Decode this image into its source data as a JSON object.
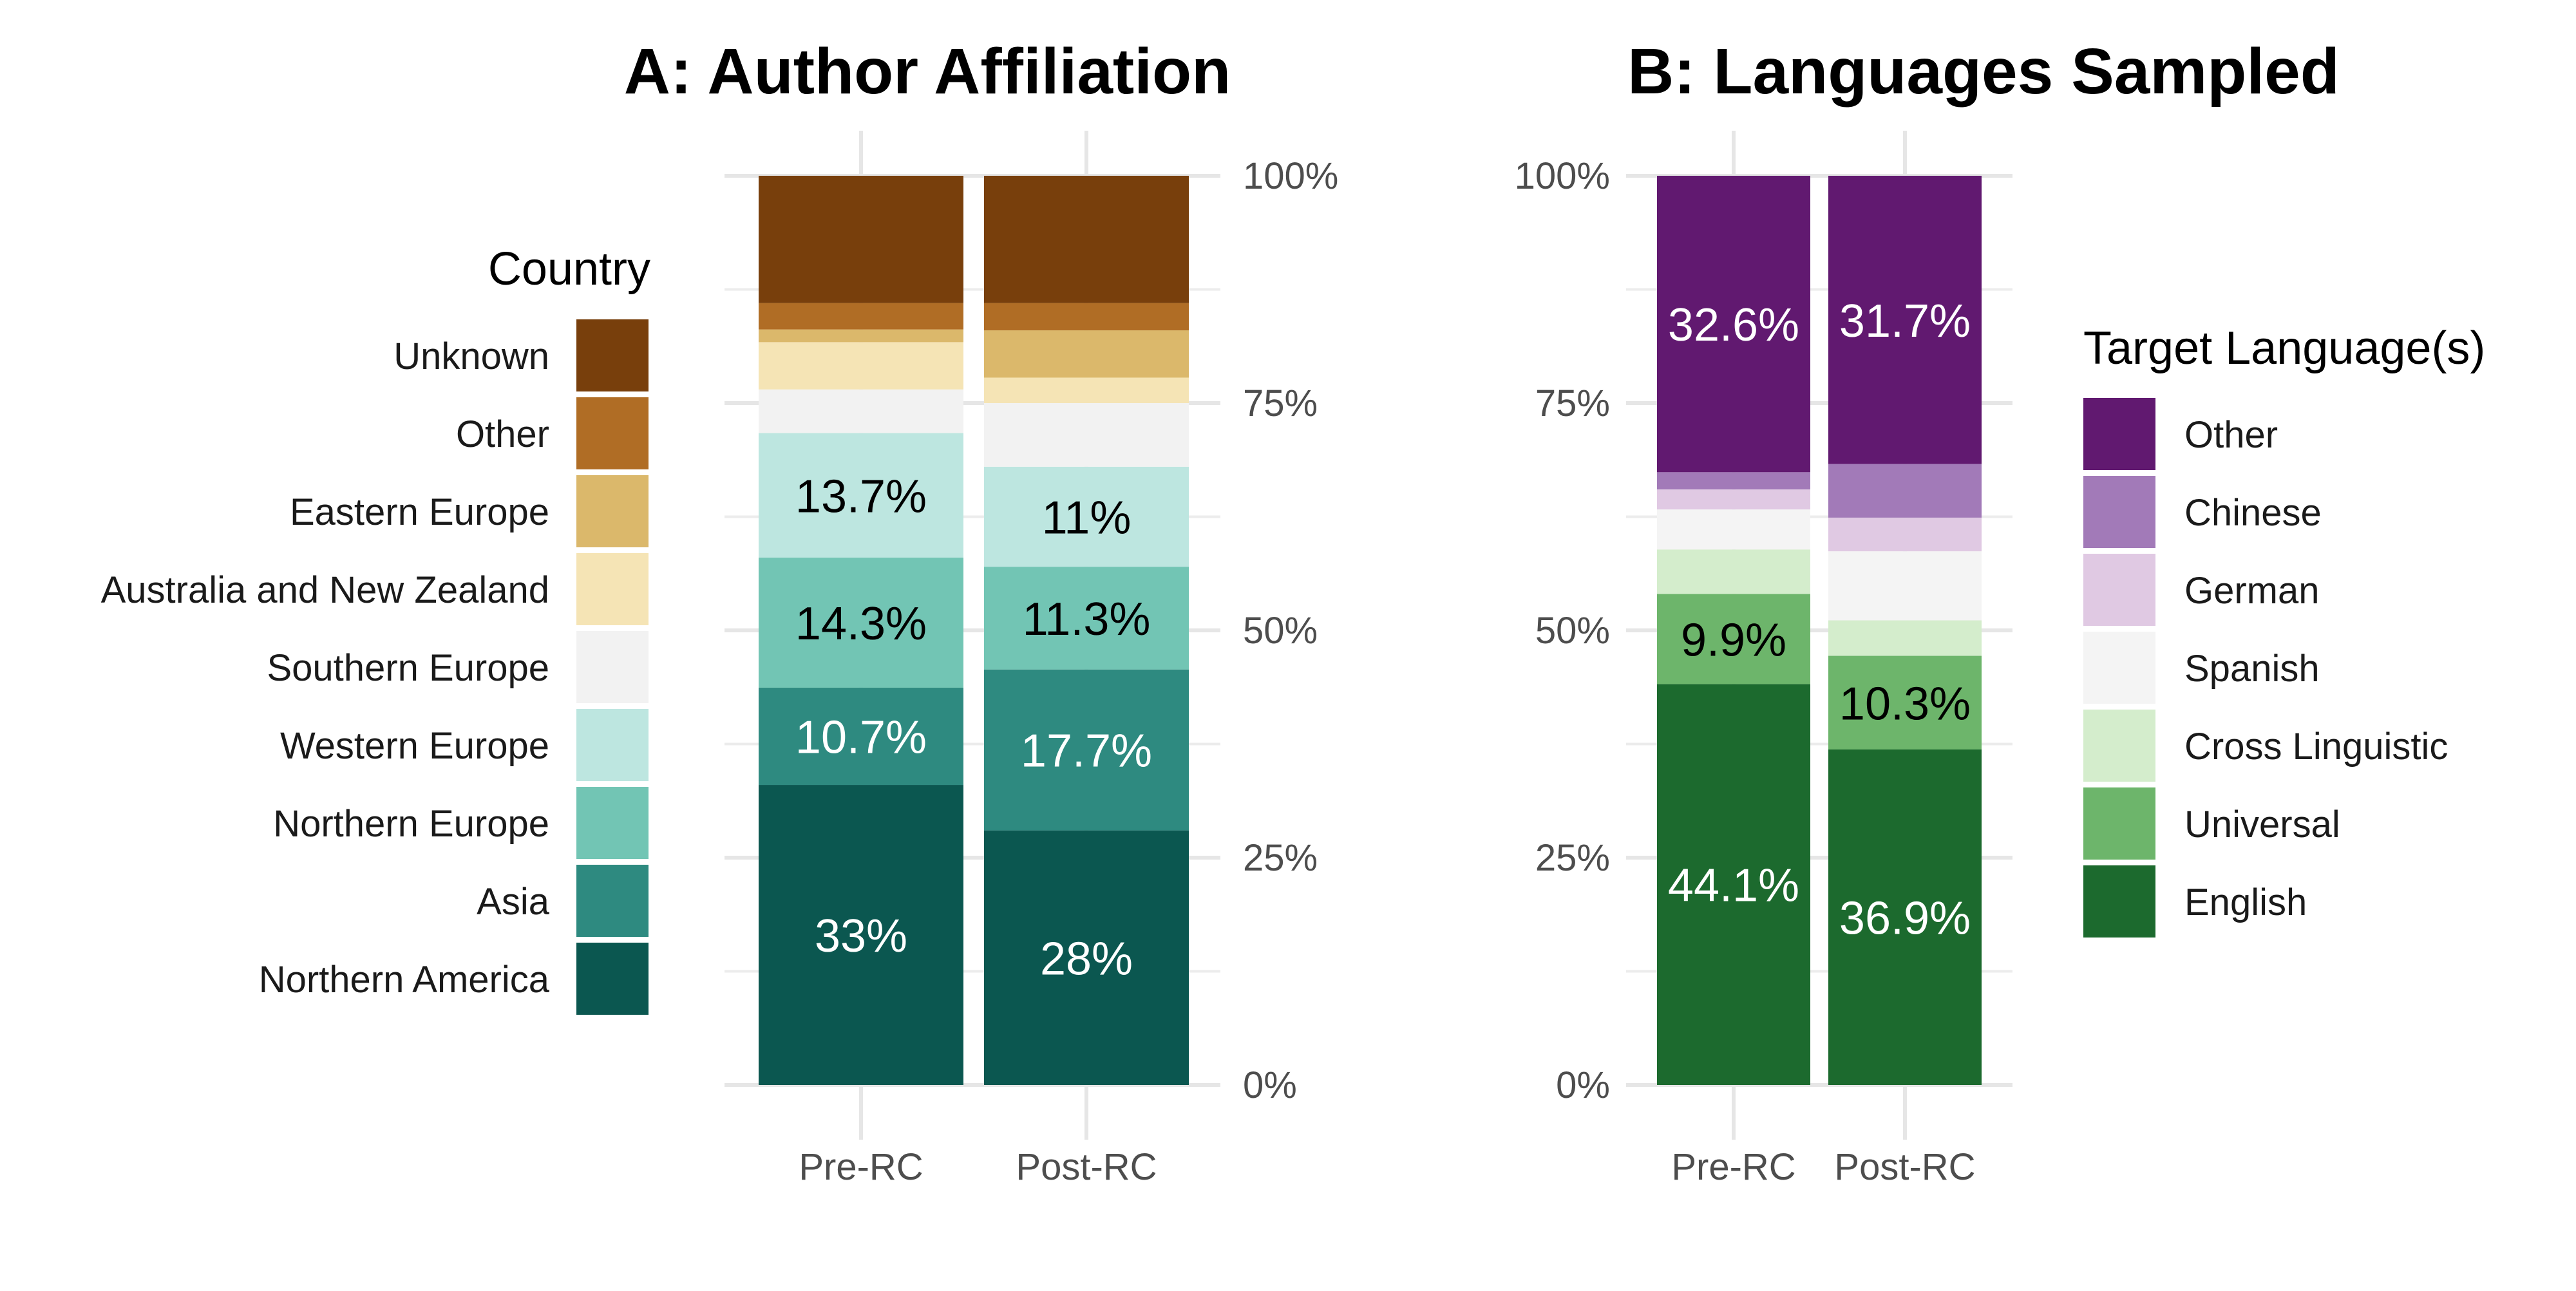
{
  "chart_data": [
    {
      "type": "bar",
      "stacked": true,
      "title": "A: Author Affiliation",
      "categories": [
        "Pre-RC",
        "Post-RC"
      ],
      "ylim": [
        0,
        100
      ],
      "y_ticks": [
        "0%",
        "25%",
        "50%",
        "75%",
        "100%"
      ],
      "y_axis_side": "right",
      "grid": true,
      "legend": {
        "title": "Country",
        "placement": "left"
      },
      "series": [
        {
          "name": "Northern America",
          "color": "#0b5750",
          "values": [
            33.0,
            28.0
          ],
          "labels": [
            "33%",
            "28%"
          ],
          "label_color": "#ffffff"
        },
        {
          "name": "Asia",
          "color": "#2e8a80",
          "values": [
            10.7,
            17.7
          ],
          "labels": [
            "10.7%",
            "17.7%"
          ],
          "label_color": "#ffffff"
        },
        {
          "name": "Northern Europe",
          "color": "#72c5b4",
          "values": [
            14.3,
            11.3
          ],
          "labels": [
            "14.3%",
            "11.3%"
          ],
          "label_color": "#000000"
        },
        {
          "name": "Western Europe",
          "color": "#bde6e0",
          "values": [
            13.7,
            11.0
          ],
          "labels": [
            "13.7%",
            "11%"
          ],
          "label_color": "#000000"
        },
        {
          "name": "Southern Europe",
          "color": "#f2f2f2",
          "values": [
            4.8,
            7.0
          ],
          "labels": [
            "",
            ""
          ],
          "label_color": "#000000"
        },
        {
          "name": "Australia and New Zealand",
          "color": "#f5e4b5",
          "values": [
            5.2,
            2.8
          ],
          "labels": [
            "",
            ""
          ],
          "label_color": "#000000"
        },
        {
          "name": "Eastern Europe",
          "color": "#dbb86b",
          "values": [
            1.4,
            5.2
          ],
          "labels": [
            "",
            ""
          ],
          "label_color": "#000000"
        },
        {
          "name": "Other",
          "color": "#b06d25",
          "values": [
            2.9,
            3.0
          ],
          "labels": [
            "",
            ""
          ],
          "label_color": "#000000"
        },
        {
          "name": "Unknown",
          "color": "#783f0c",
          "values": [
            14.0,
            14.0
          ],
          "labels": [
            "",
            ""
          ],
          "label_color": "#ffffff"
        }
      ]
    },
    {
      "type": "bar",
      "stacked": true,
      "title": "B: Languages Sampled",
      "categories": [
        "Pre-RC",
        "Post-RC"
      ],
      "ylim": [
        0,
        100
      ],
      "y_ticks": [
        "0%",
        "25%",
        "50%",
        "75%",
        "100%"
      ],
      "y_axis_side": "left",
      "grid": true,
      "legend": {
        "title": "Target Language(s)",
        "placement": "right"
      },
      "series": [
        {
          "name": "English",
          "color": "#1c6a2e",
          "values": [
            44.1,
            36.9
          ],
          "labels": [
            "44.1%",
            "36.9%"
          ],
          "label_color": "#ffffff"
        },
        {
          "name": "Universal",
          "color": "#6db56b",
          "values": [
            9.9,
            10.3
          ],
          "labels": [
            "9.9%",
            "10.3%"
          ],
          "label_color": "#000000"
        },
        {
          "name": "Cross Linguistic",
          "color": "#d4edcc",
          "values": [
            4.9,
            3.9
          ],
          "labels": [
            "",
            ""
          ],
          "label_color": "#000000"
        },
        {
          "name": "Spanish",
          "color": "#f4f4f4",
          "values": [
            4.4,
            7.6
          ],
          "labels": [
            "",
            ""
          ],
          "label_color": "#000000"
        },
        {
          "name": "German",
          "color": "#e0c9e3",
          "values": [
            2.2,
            3.7
          ],
          "labels": [
            "",
            ""
          ],
          "label_color": "#000000"
        },
        {
          "name": "Chinese",
          "color": "#a27ab8",
          "values": [
            1.9,
            5.9
          ],
          "labels": [
            "",
            ""
          ],
          "label_color": "#000000"
        },
        {
          "name": "Other",
          "color": "#611970",
          "values": [
            32.6,
            31.7
          ],
          "labels": [
            "32.6%",
            "31.7%"
          ],
          "label_color": "#ffffff"
        }
      ]
    }
  ]
}
